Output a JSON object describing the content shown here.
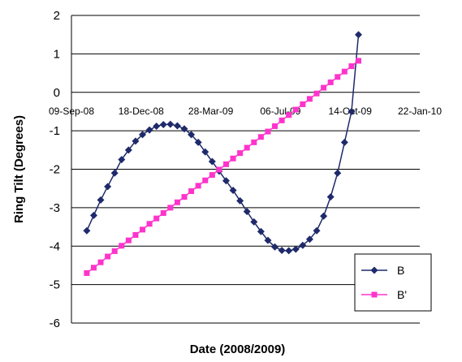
{
  "chart_data": {
    "type": "line",
    "xlabel": "Date (2008/2009)",
    "ylabel": "Ring Tilt (Degrees)",
    "ylim": [
      -6,
      2
    ],
    "yticks": [
      2,
      1,
      0,
      -1,
      -2,
      -3,
      -4,
      -5,
      -6
    ],
    "xlim": [
      "2008-09-09",
      "2010-01-22"
    ],
    "xticks": [
      "09-Sep-08",
      "18-Dec-08",
      "28-Mar-09",
      "06-Jul-09",
      "14-Oct-09",
      "22-Jan-10"
    ],
    "grid": true,
    "legend": "bottom-right",
    "series": [
      {
        "name": "B",
        "color": "#1f2a6b",
        "marker": "diamond",
        "x": [
          "2008-10-01",
          "2008-10-11",
          "2008-10-21",
          "2008-10-31",
          "2008-11-10",
          "2008-11-20",
          "2008-11-30",
          "2008-12-10",
          "2008-12-20",
          "2008-12-30",
          "2009-01-09",
          "2009-01-19",
          "2009-01-29",
          "2009-02-08",
          "2009-02-18",
          "2009-02-28",
          "2009-03-10",
          "2009-03-20",
          "2009-03-30",
          "2009-04-09",
          "2009-04-19",
          "2009-04-29",
          "2009-05-09",
          "2009-05-19",
          "2009-05-29",
          "2009-06-08",
          "2009-06-18",
          "2009-06-28",
          "2009-07-08",
          "2009-07-18",
          "2009-07-28",
          "2009-08-07",
          "2009-08-17",
          "2009-08-27",
          "2009-09-06",
          "2009-09-16",
          "2009-09-26",
          "2009-10-06",
          "2009-10-16",
          "2009-10-26"
        ],
        "values": [
          -3.6,
          -3.2,
          -2.8,
          -2.45,
          -2.1,
          -1.75,
          -1.5,
          -1.27,
          -1.1,
          -0.98,
          -0.88,
          -0.84,
          -0.83,
          -0.87,
          -0.95,
          -1.1,
          -1.3,
          -1.55,
          -1.8,
          -2.05,
          -2.3,
          -2.55,
          -2.82,
          -3.1,
          -3.37,
          -3.62,
          -3.85,
          -4.02,
          -4.11,
          -4.12,
          -4.08,
          -3.98,
          -3.82,
          -3.6,
          -3.22,
          -2.72,
          -2.1,
          -1.3,
          -0.5,
          1.5
        ]
      },
      {
        "name": "B'",
        "color": "#ff33cc",
        "marker": "square",
        "x": [
          "2008-10-01",
          "2008-10-11",
          "2008-10-21",
          "2008-10-31",
          "2008-11-10",
          "2008-11-20",
          "2008-11-30",
          "2008-12-10",
          "2008-12-20",
          "2008-12-30",
          "2009-01-09",
          "2009-01-19",
          "2009-01-29",
          "2009-02-08",
          "2009-02-18",
          "2009-02-28",
          "2009-03-10",
          "2009-03-20",
          "2009-03-30",
          "2009-04-09",
          "2009-04-19",
          "2009-04-29",
          "2009-05-09",
          "2009-05-19",
          "2009-05-29",
          "2009-06-08",
          "2009-06-18",
          "2009-06-28",
          "2009-07-08",
          "2009-07-18",
          "2009-07-28",
          "2009-08-07",
          "2009-08-17",
          "2009-08-27",
          "2009-09-06",
          "2009-09-16",
          "2009-09-26",
          "2009-10-06",
          "2009-10-16",
          "2009-10-26"
        ],
        "values": [
          -4.7,
          -4.56,
          -4.42,
          -4.27,
          -4.13,
          -3.99,
          -3.85,
          -3.71,
          -3.57,
          -3.42,
          -3.28,
          -3.14,
          -3.0,
          -2.86,
          -2.72,
          -2.57,
          -2.43,
          -2.29,
          -2.15,
          -2.01,
          -1.87,
          -1.72,
          -1.58,
          -1.44,
          -1.3,
          -1.16,
          -1.02,
          -0.88,
          -0.73,
          -0.59,
          -0.45,
          -0.31,
          -0.17,
          -0.03,
          0.12,
          0.26,
          0.4,
          0.54,
          0.68,
          0.82
        ]
      }
    ]
  }
}
